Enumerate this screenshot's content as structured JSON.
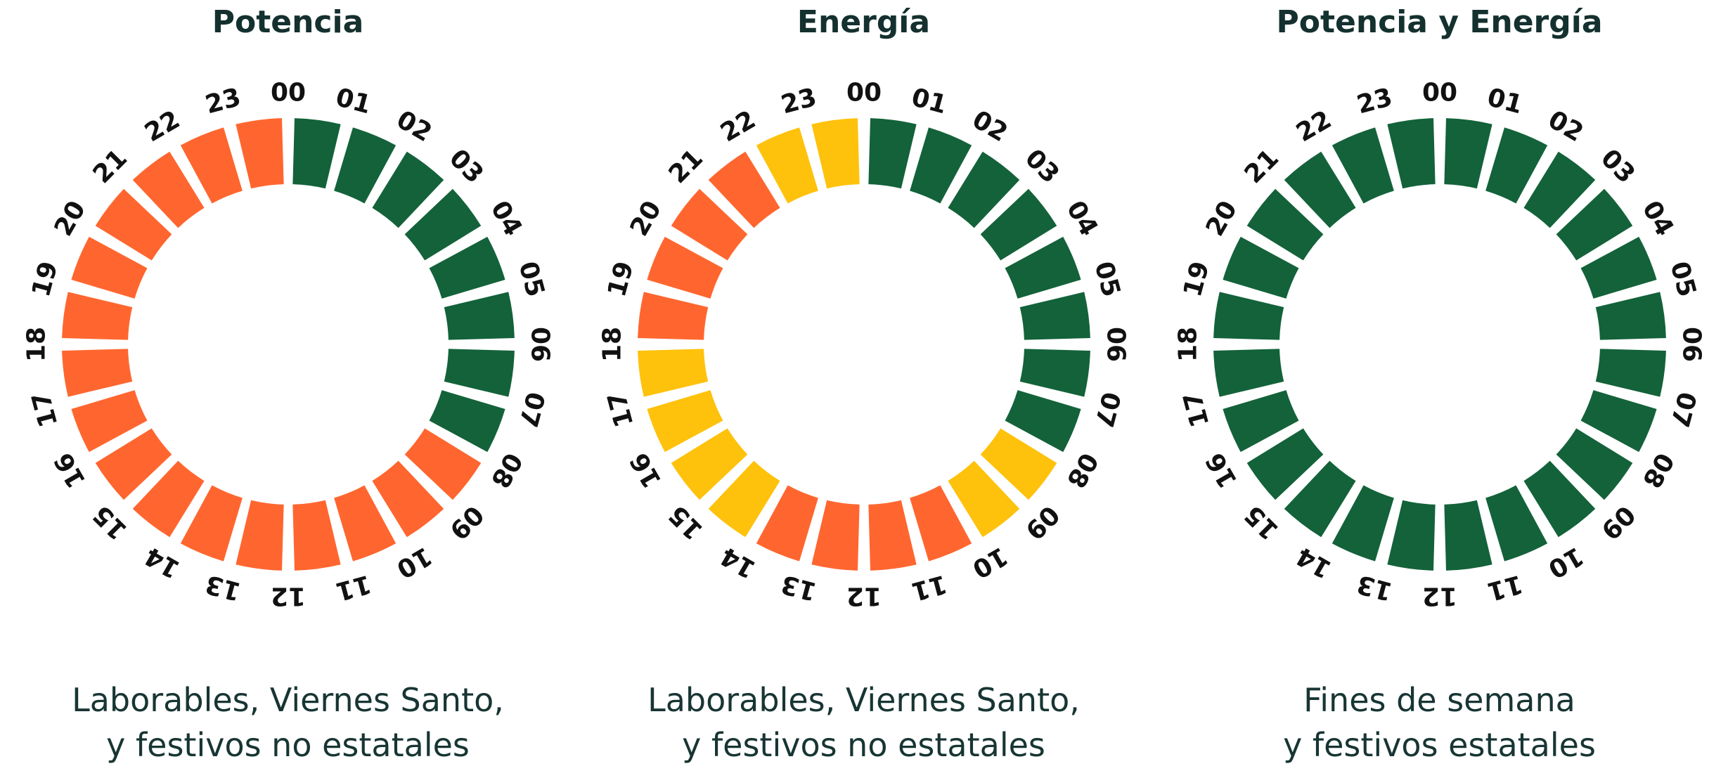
{
  "colors": {
    "green": "#13623a",
    "orange": "#ff662f",
    "yellow": "#fec20c"
  },
  "hour_labels": [
    "00",
    "01",
    "02",
    "03",
    "04",
    "05",
    "06",
    "07",
    "08",
    "09",
    "10",
    "11",
    "12",
    "13",
    "14",
    "15",
    "16",
    "17",
    "18",
    "19",
    "20",
    "21",
    "22",
    "23"
  ],
  "panels": [
    {
      "title": "Potencia",
      "caption_line1": "Laborables, Viernes Santo,",
      "caption_line2": "y festivos no estatales",
      "hours": [
        "green",
        "green",
        "green",
        "green",
        "green",
        "green",
        "green",
        "green",
        "orange",
        "orange",
        "orange",
        "orange",
        "orange",
        "orange",
        "orange",
        "orange",
        "orange",
        "orange",
        "orange",
        "orange",
        "orange",
        "orange",
        "orange",
        "orange"
      ]
    },
    {
      "title": "Energía",
      "caption_line1": "Laborables, Viernes Santo,",
      "caption_line2": "y festivos no estatales",
      "hours": [
        "green",
        "green",
        "green",
        "green",
        "green",
        "green",
        "green",
        "green",
        "yellow",
        "yellow",
        "orange",
        "orange",
        "orange",
        "orange",
        "yellow",
        "yellow",
        "yellow",
        "yellow",
        "orange",
        "orange",
        "orange",
        "orange",
        "yellow",
        "yellow"
      ]
    },
    {
      "title": "Potencia y Energía",
      "caption_line1": "Fines de semana",
      "caption_line2": "y festivos estatales",
      "hours": [
        "green",
        "green",
        "green",
        "green",
        "green",
        "green",
        "green",
        "green",
        "green",
        "green",
        "green",
        "green",
        "green",
        "green",
        "green",
        "green",
        "green",
        "green",
        "green",
        "green",
        "green",
        "green",
        "green",
        "green"
      ]
    }
  ]
}
